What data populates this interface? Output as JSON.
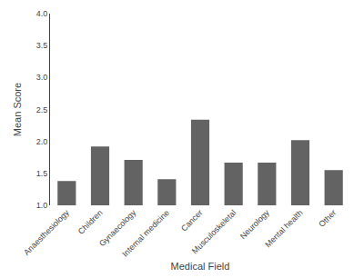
{
  "chart_data": {
    "type": "bar",
    "xlabel": "Medical Field",
    "ylabel": "Mean Score",
    "categories": [
      "Anaesthesiology",
      "Children",
      "Gynaecology",
      "Internal medicine",
      "Cancer",
      "Musculoskeletal",
      "Neurology",
      "Mental health",
      "Other"
    ],
    "values": [
      1.38,
      1.92,
      1.71,
      1.41,
      2.34,
      1.67,
      1.67,
      2.02,
      1.55
    ],
    "color": "#636363",
    "ylim": [
      1.0,
      4.0
    ],
    "yticks": [
      {
        "value": 1.0,
        "label": "1.0"
      },
      1.5,
      {
        "value": 2.0,
        "label": "2.0"
      },
      2.5,
      {
        "value": 3.0,
        "label": "3.0"
      },
      3.5,
      {
        "value": 4.0,
        "label": "4.0"
      }
    ],
    "grid": false
  }
}
